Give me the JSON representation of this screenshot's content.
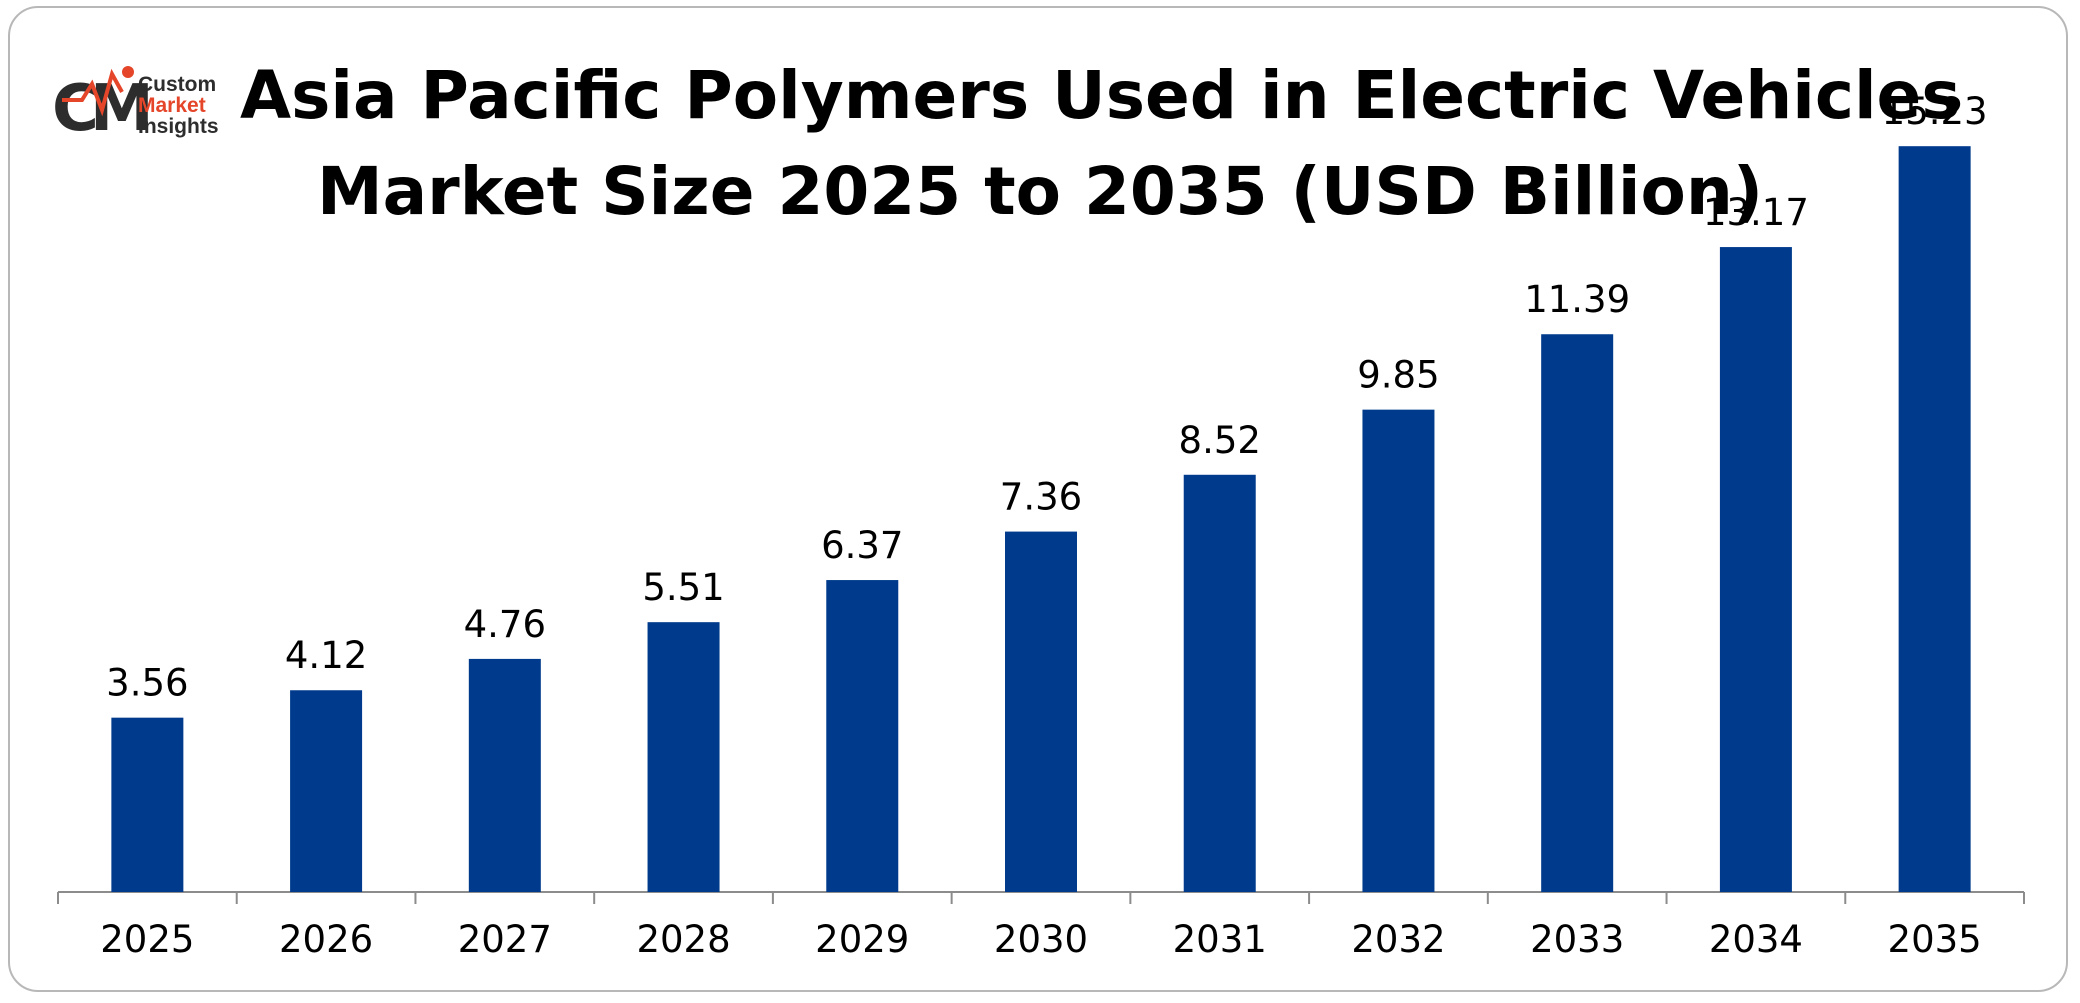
{
  "chart_data": {
    "type": "bar",
    "title_line1": "Asia Pacific Polymers Used in Electric Vehicles",
    "title_line2": "Market Size 2025 to 2035 (USD Billion)",
    "categories": [
      "2025",
      "2026",
      "2027",
      "2028",
      "2029",
      "2030",
      "2031",
      "2032",
      "2033",
      "2034",
      "2035"
    ],
    "values": [
      3.56,
      4.12,
      4.76,
      5.51,
      6.37,
      7.36,
      8.52,
      9.85,
      11.39,
      13.17,
      15.23
    ],
    "value_labels": [
      "3.56",
      "4.12",
      "4.76",
      "5.51",
      "6.37",
      "7.36",
      "8.52",
      "9.85",
      "11.39",
      "13.17",
      "15.23"
    ],
    "bar_color": "#003A8C",
    "ylim": [
      0,
      16
    ],
    "grid": false,
    "legend": "none"
  },
  "logo": {
    "letters": "CMI",
    "line1": "Custom",
    "line2": "Market",
    "line3": "Insights",
    "accent_color": "#e5462a",
    "dark_color": "#2d2d2d"
  }
}
